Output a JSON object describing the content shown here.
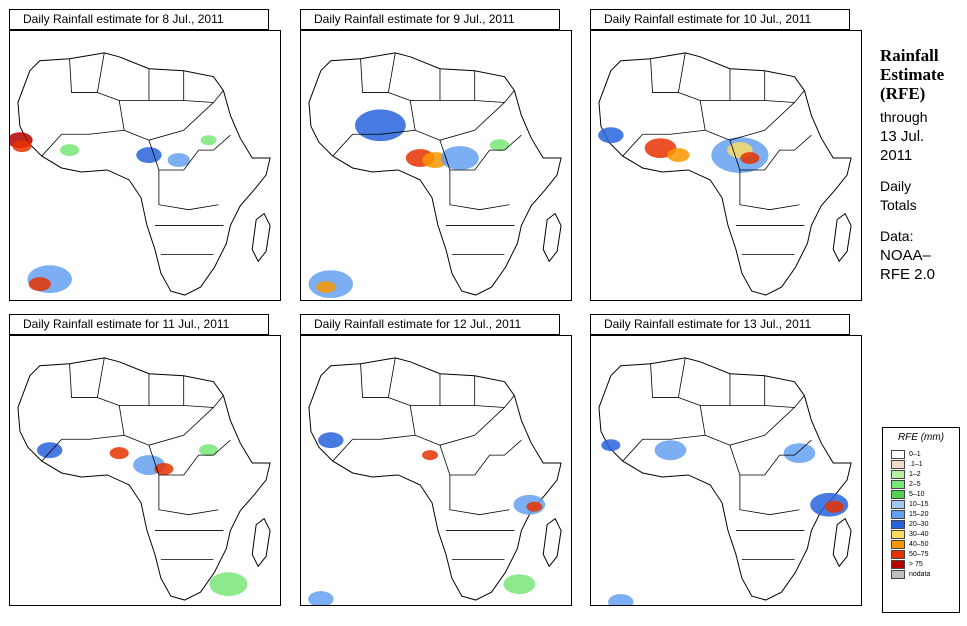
{
  "panels": [
    {
      "title": "Daily Rainfall estimate for  8 Jul., 2011"
    },
    {
      "title": "Daily Rainfall estimate for  9 Jul., 2011"
    },
    {
      "title": "Daily Rainfall estimate for  10 Jul., 2011"
    },
    {
      "title": "Daily Rainfall estimate for  11 Jul., 2011"
    },
    {
      "title": "Daily Rainfall estimate for  12 Jul., 2011"
    },
    {
      "title": "Daily Rainfall estimate for  13 Jul., 2011"
    }
  ],
  "sidebar": {
    "title_line1": "Rainfall",
    "title_line2": "Estimate",
    "title_line3": "(RFE)",
    "through": "through",
    "date_line1": "13 Jul.",
    "date_line2": "2011",
    "daily": "Daily",
    "totals": "Totals",
    "data_label": "Data:",
    "source_line1": "NOAA–",
    "source_line2": "RFE 2.0"
  },
  "legend": {
    "title": "RFE (mm)",
    "items": [
      {
        "label": "0–1",
        "color": "#ffffff"
      },
      {
        "label": ".1–1",
        "color": "#f0dcc8"
      },
      {
        "label": "1–2",
        "color": "#b4f0a0"
      },
      {
        "label": "2–5",
        "color": "#78e678"
      },
      {
        "label": "5–10",
        "color": "#50d250"
      },
      {
        "label": "10–15",
        "color": "#a0c8f0"
      },
      {
        "label": "15–20",
        "color": "#64a0f0"
      },
      {
        "label": "20–30",
        "color": "#2864dc"
      },
      {
        "label": "30–40",
        "color": "#fadc64"
      },
      {
        "label": "40–50",
        "color": "#fa9600"
      },
      {
        "label": "50–75",
        "color": "#e63200"
      },
      {
        "label": "> 75",
        "color": "#b40000"
      },
      {
        "label": "nodata",
        "color": "#bebebe"
      }
    ]
  }
}
